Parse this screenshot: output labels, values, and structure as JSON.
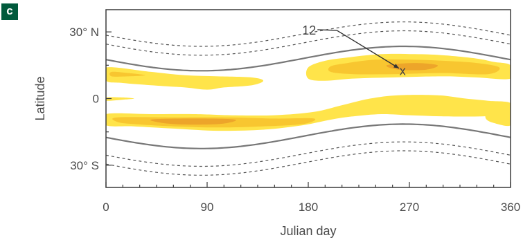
{
  "panel_label": "c",
  "chart_data": {
    "type": "contour",
    "title": "",
    "xlabel": "Julian day",
    "ylabel": "Latitude",
    "xlim": [
      0,
      360
    ],
    "ylim": [
      -40,
      40
    ],
    "x_ticks": [
      {
        "value": 0,
        "label": "0"
      },
      {
        "value": 90,
        "label": "90"
      },
      {
        "value": 180,
        "label": "180"
      },
      {
        "value": 270,
        "label": "270"
      },
      {
        "value": 360,
        "label": "360"
      }
    ],
    "y_ticks": [
      {
        "value": 30,
        "label": "30° N"
      },
      {
        "value": 0,
        "label": "0"
      },
      {
        "value": -30,
        "label": "30° S"
      }
    ],
    "annotations": [
      {
        "label": "12",
        "text_at": [
          182,
          31
        ],
        "arrow_to": [
          262,
          13
        ]
      },
      {
        "label": "x",
        "at": [
          264,
          13
        ]
      }
    ],
    "colors": {
      "light": "#ffe44a",
      "medium": "#f8c630",
      "dark": "#eda52a",
      "line": "#777777"
    },
    "guide_lines": {
      "north_solid": {
        "mean": 18,
        "amplitude": 5.5,
        "peak_day": 265
      },
      "south_solid": {
        "mean": -17,
        "amplitude": 5.5,
        "peak_day": 265
      },
      "north_dashed_offsets": [
        7,
        11
      ],
      "south_dashed_offsets": [
        -8,
        -12
      ],
      "dash_pattern": "4,4"
    },
    "regions": [
      {
        "level": "light",
        "points": [
          [
            0,
            14
          ],
          [
            40,
            12
          ],
          [
            70,
            10.5
          ],
          [
            100,
            10
          ],
          [
            130,
            9.5
          ],
          [
            140,
            8
          ],
          [
            130,
            6
          ],
          [
            105,
            5
          ],
          [
            90,
            4
          ],
          [
            70,
            5
          ],
          [
            40,
            6
          ],
          [
            15,
            7
          ],
          [
            0,
            8
          ]
        ]
      },
      {
        "level": "light",
        "points": [
          [
            95,
            9
          ],
          [
            60,
            10
          ],
          [
            45,
            9
          ],
          [
            55,
            8
          ],
          [
            85,
            8
          ]
        ]
      },
      {
        "level": "medium",
        "points": [
          [
            5,
            12
          ],
          [
            20,
            11.5
          ],
          [
            35,
            10.5
          ],
          [
            20,
            10
          ],
          [
            5,
            10
          ]
        ]
      },
      {
        "level": "light",
        "points": [
          [
            180,
            14
          ],
          [
            195,
            17
          ],
          [
            215,
            18.5
          ],
          [
            245,
            20
          ],
          [
            275,
            20
          ],
          [
            300,
            19.5
          ],
          [
            330,
            18
          ],
          [
            345,
            16.5
          ],
          [
            360,
            15
          ],
          [
            360,
            9
          ],
          [
            330,
            9.5
          ],
          [
            300,
            10
          ],
          [
            255,
            9.5
          ],
          [
            220,
            9
          ],
          [
            195,
            8
          ],
          [
            180,
            9
          ]
        ]
      },
      {
        "level": "medium",
        "points": [
          [
            200,
            14.5
          ],
          [
            215,
            16
          ],
          [
            240,
            17.5
          ],
          [
            270,
            17.5
          ],
          [
            300,
            17
          ],
          [
            330,
            16
          ],
          [
            350,
            14
          ],
          [
            340,
            11
          ],
          [
            300,
            11.5
          ],
          [
            255,
            11
          ],
          [
            220,
            11
          ],
          [
            200,
            12
          ]
        ]
      },
      {
        "level": "dark",
        "points": [
          [
            250,
            15
          ],
          [
            275,
            16
          ],
          [
            295,
            15
          ],
          [
            285,
            13
          ],
          [
            260,
            13
          ]
        ]
      },
      {
        "level": "light",
        "points": [
          [
            0,
            -7
          ],
          [
            40,
            -7
          ],
          [
            80,
            -7
          ],
          [
            110,
            -7.5
          ],
          [
            150,
            -7.5
          ],
          [
            185,
            -6
          ],
          [
            210,
            -3
          ],
          [
            235,
            0
          ],
          [
            260,
            1.5
          ],
          [
            295,
            1.5
          ],
          [
            320,
            0
          ],
          [
            340,
            -1
          ],
          [
            360,
            -2
          ],
          [
            360,
            -7
          ],
          [
            335,
            -8
          ],
          [
            300,
            -8
          ],
          [
            270,
            -7.5
          ],
          [
            245,
            -7
          ],
          [
            220,
            -8
          ],
          [
            200,
            -9.5
          ],
          [
            175,
            -12
          ],
          [
            140,
            -14
          ],
          [
            100,
            -14.5
          ],
          [
            60,
            -13.5
          ],
          [
            25,
            -12.5
          ],
          [
            0,
            -12
          ]
        ]
      },
      {
        "level": "light",
        "points": [
          [
            0,
            -1
          ],
          [
            15,
            -0.5
          ],
          [
            25,
            0
          ],
          [
            15,
            0.5
          ],
          [
            0,
            0.5
          ]
        ]
      },
      {
        "level": "medium",
        "points": [
          [
            10,
            -8.5
          ],
          [
            60,
            -8.5
          ],
          [
            110,
            -8.5
          ],
          [
            150,
            -9
          ],
          [
            185,
            -9
          ],
          [
            175,
            -11.5
          ],
          [
            140,
            -12.5
          ],
          [
            100,
            -13
          ],
          [
            60,
            -12.5
          ],
          [
            25,
            -11.5
          ],
          [
            10,
            -10.5
          ]
        ]
      },
      {
        "level": "dark",
        "points": [
          [
            40,
            -9.5
          ],
          [
            80,
            -9
          ],
          [
            115,
            -9.5
          ],
          [
            100,
            -11.5
          ],
          [
            60,
            -11.5
          ]
        ]
      },
      {
        "level": "light",
        "points": [
          [
            340,
            -6
          ],
          [
            355,
            -5
          ],
          [
            360,
            -5
          ],
          [
            360,
            -12
          ],
          [
            345,
            -11
          ],
          [
            338,
            -9
          ]
        ]
      }
    ]
  }
}
